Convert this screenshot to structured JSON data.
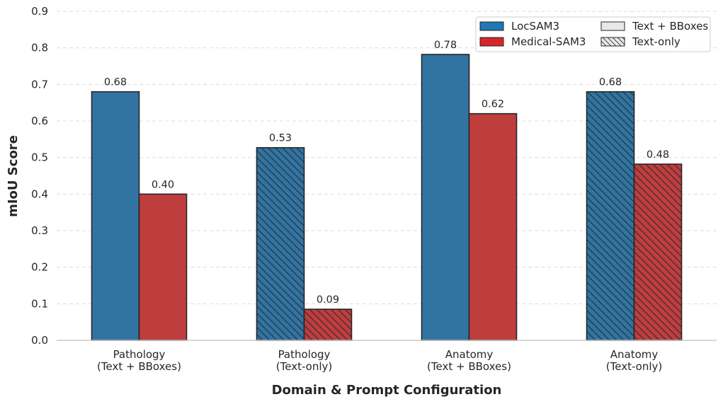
{
  "chart_data": {
    "type": "bar",
    "title": "",
    "xlabel": "Domain & Prompt Configuration",
    "ylabel": "mIoU Score",
    "ylim": [
      0,
      0.9
    ],
    "yticks": [
      "0.0",
      "0.1",
      "0.2",
      "0.3",
      "0.4",
      "0.5",
      "0.6",
      "0.7",
      "0.8",
      "0.9"
    ],
    "grid": "horizontal dashed",
    "legend_position": "top-right",
    "categories": [
      [
        "Pathology",
        "(Text + BBoxes)"
      ],
      [
        "Pathology",
        "(Text-only)"
      ],
      [
        "Anatomy",
        "(Text + BBoxes)"
      ],
      [
        "Anatomy",
        "(Text-only)"
      ]
    ],
    "category_hatched": [
      false,
      true,
      false,
      true
    ],
    "series": [
      {
        "name": "LocSAM3",
        "color": "#3274a1",
        "legend_color": "#1f77b4",
        "values": [
          0.68,
          0.527,
          0.782,
          0.68
        ],
        "labels": [
          "0.68",
          "0.53",
          "0.78",
          "0.68"
        ]
      },
      {
        "name": "Medical-SAM3",
        "color": "#c03d3e",
        "legend_color": "#d62728",
        "values": [
          0.4,
          0.085,
          0.62,
          0.482
        ],
        "labels": [
          "0.40",
          "0.09",
          "0.62",
          "0.48"
        ]
      }
    ],
    "legend": [
      {
        "label": "LocSAM3",
        "swatch": "#1f77b4",
        "hatch": false
      },
      {
        "label": "Medical-SAM3",
        "swatch": "#d62728",
        "hatch": false
      },
      {
        "label": "Text + BBoxes",
        "swatch": "#e8e8e8",
        "hatch": false
      },
      {
        "label": "Text-only",
        "swatch": "#e8e8e8",
        "hatch": true
      }
    ]
  }
}
